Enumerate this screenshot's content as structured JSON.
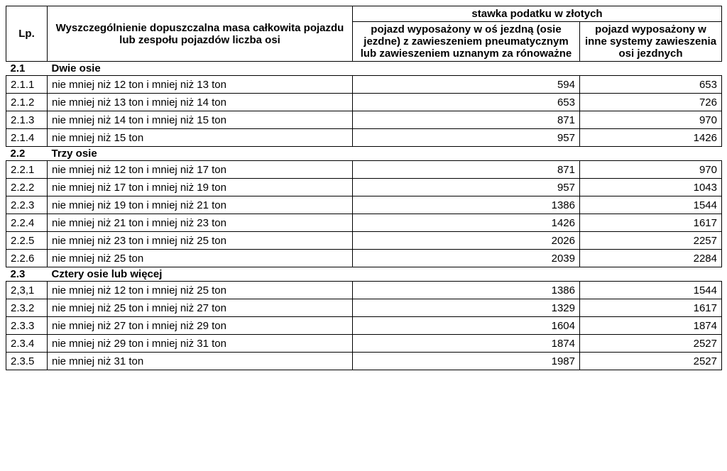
{
  "header": {
    "lp": "Lp.",
    "desc": "Wyszczególnienie dopuszczalna masa całkowita pojazdu lub zespołu pojazdów liczba osi",
    "group": "stawka podatku w złotych",
    "col1": "pojazd wyposażony w oś jezdną (osie jezdne) z zawieszeniem pneumatycznym lub zawieszeniem uznanym za rónoważne",
    "col2": "pojazd wyposażony w inne systemy zawieszenia osi jezdnych"
  },
  "sections": [
    {
      "lp": "2.1",
      "title": "Dwie osie",
      "rows": [
        {
          "lp": "2.1.1",
          "desc": "nie mniej niż 12 ton i  mniej niż 13 ton",
          "v1": "594",
          "v2": "653"
        },
        {
          "lp": "2.1.2",
          "desc": "nie mniej niż 13 ton i  mniej niż 14 ton",
          "v1": "653",
          "v2": "726"
        },
        {
          "lp": "2.1.3",
          "desc": "nie mniej niż 14 ton i  mniej niż 15 ton",
          "v1": "871",
          "v2": "970"
        },
        {
          "lp": "2.1.4",
          "desc": "nie mniej niż 15 ton",
          "v1": "957",
          "v2": "1426"
        }
      ]
    },
    {
      "lp": "2.2",
      "title": "Trzy osie",
      "rows": [
        {
          "lp": "2.2.1",
          "desc": "nie mniej niż 12 ton  i  mniej niż 17 ton",
          "v1": "871",
          "v2": "970"
        },
        {
          "lp": "2.2.2",
          "desc": "nie mniej niż 17 ton  i  mniej niż 19 ton",
          "v1": "957",
          "v2": "1043"
        },
        {
          "lp": "2.2.3",
          "desc": "nie mniej niż 19 ton  i  mniej niż 21 ton",
          "v1": "1386",
          "v2": "1544"
        },
        {
          "lp": "2.2.4",
          "desc": "nie mniej niż 21 ton  i  mniej niż 23 ton",
          "v1": "1426",
          "v2": "1617"
        },
        {
          "lp": "2.2.5",
          "desc": "nie mniej niż 23 ton  i  mniej niż 25 ton",
          "v1": "2026",
          "v2": "2257"
        },
        {
          "lp": "2.2.6",
          "desc": "nie mniej niż 25 ton",
          "v1": "2039",
          "v2": "2284"
        }
      ]
    },
    {
      "lp": "2.3",
      "title": "Cztery osie lub więcej",
      "rows": [
        {
          "lp": "2,3,1",
          "desc": "nie mniej niż 12 ton i  mniej niż 25 ton",
          "v1": "1386",
          "v2": "1544"
        },
        {
          "lp": "2.3.2",
          "desc": "nie mniej niż 25 ton i  mniej niż 27 ton",
          "v1": "1329",
          "v2": "1617"
        },
        {
          "lp": "2.3.3",
          "desc": "nie mniej niż 27 ton i  mniej niż 29 ton",
          "v1": "1604",
          "v2": "1874"
        },
        {
          "lp": "2.3.4",
          "desc": "nie mniej niż 29 ton i  mniej niż 31 ton",
          "v1": "1874",
          "v2": "2527"
        },
        {
          "lp": "2.3.5",
          "desc": "nie mniej niż 31 ton",
          "v1": "1987",
          "v2": "2527"
        }
      ]
    }
  ]
}
